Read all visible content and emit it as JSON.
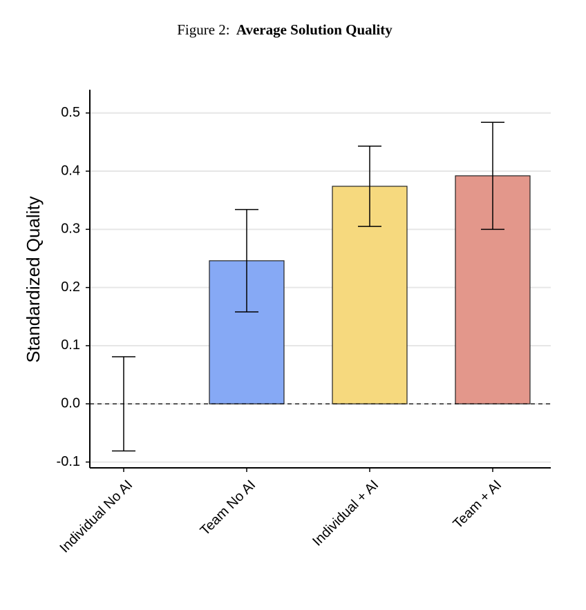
{
  "chart_data": {
    "type": "bar",
    "figure_label": "Figure 2:",
    "title": "Average Solution Quality",
    "y_label": "Standardized Quality",
    "categories": [
      "Individual No AI",
      "Team No AI",
      "Individual + AI",
      "Team + AI"
    ],
    "values": [
      0,
      0.246,
      0.374,
      0.392
    ],
    "errors": [
      0.081,
      0.088,
      0.069,
      0.092
    ],
    "colors": [
      "#ffffff",
      "#86a9f5",
      "#f6d97e",
      "#e3978b"
    ],
    "ylim": [
      -0.11,
      0.54
    ],
    "yticks": [
      -0.1,
      {
        "value": 0,
        "label": "0.0"
      },
      0.1,
      0.2,
      0.3,
      0.4,
      0.5
    ],
    "reference_line": 0,
    "grid": true
  }
}
